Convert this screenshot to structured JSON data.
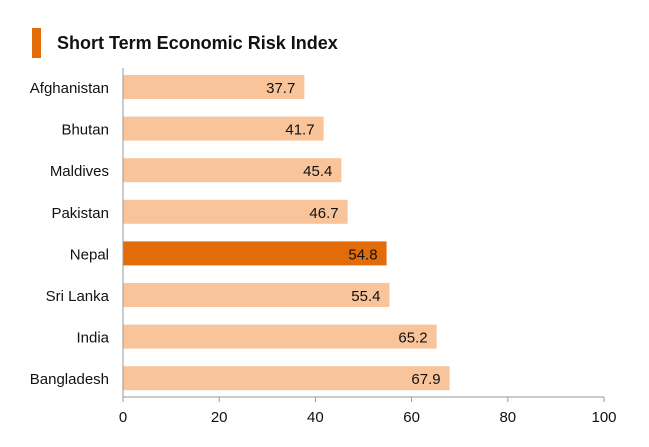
{
  "chart_data": {
    "type": "bar",
    "orientation": "horizontal",
    "title": "Short Term Economic Risk Index",
    "categories": [
      "Afghanistan",
      "Bhutan",
      "Maldives",
      "Pakistan",
      "Nepal",
      "Sri Lanka",
      "India",
      "Bangladesh"
    ],
    "values": [
      37.7,
      41.7,
      45.4,
      46.7,
      54.8,
      55.4,
      65.2,
      67.9
    ],
    "value_labels": [
      "37.7",
      "41.7",
      "45.4",
      "46.7",
      "54.8",
      "55.4",
      "65.2",
      "67.9"
    ],
    "highlight": "Nepal",
    "xlim": [
      0,
      100
    ],
    "x_ticks": [
      0,
      20,
      40,
      60,
      80,
      100
    ],
    "xlabel": "",
    "ylabel": "",
    "grid": false,
    "colors": {
      "bar": "#f9c49a",
      "highlight": "#e36c0a",
      "accent": "#e36c0a",
      "axis": "#999999",
      "text": "#111111"
    }
  }
}
